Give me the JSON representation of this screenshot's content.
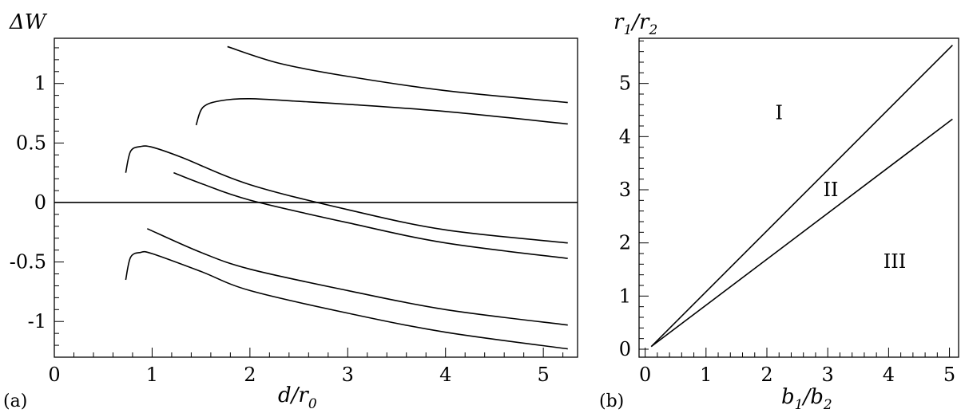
{
  "chart_data": [
    {
      "type": "line",
      "panel_label": "(a)",
      "xlabel": "d/r0",
      "xlabel_main": "d/r",
      "xlabel_sub": "0",
      "ylabel": "ΔW",
      "xlim": [
        0,
        5.35
      ],
      "ylim": [
        -1.3,
        1.38
      ],
      "x_ticks": [
        "0",
        "1",
        "2",
        "3",
        "4",
        "5"
      ],
      "y_ticks": [
        "1",
        "0.5",
        "0",
        "-0.5",
        "-1"
      ],
      "y_tick_values": [
        1,
        0.5,
        0,
        -0.5,
        -1
      ],
      "x_tick_values": [
        0,
        1,
        2,
        3,
        4,
        5
      ],
      "grid": false,
      "zero_line": true,
      "series": [
        {
          "points": [
            [
              1.77,
              1.31
            ],
            [
              2.3,
              1.17
            ],
            [
              3.0,
              1.06
            ],
            [
              4.0,
              0.94
            ],
            [
              5.25,
              0.84
            ]
          ]
        },
        {
          "points": [
            [
              1.45,
              0.65
            ],
            [
              1.52,
              0.8
            ],
            [
              1.7,
              0.855
            ],
            [
              2.0,
              0.872
            ],
            [
              2.5,
              0.85
            ],
            [
              3.0,
              0.825
            ],
            [
              4.0,
              0.765
            ],
            [
              5.25,
              0.66
            ]
          ]
        },
        {
          "points": [
            [
              0.73,
              0.25
            ],
            [
              0.78,
              0.43
            ],
            [
              0.88,
              0.47
            ],
            [
              1.0,
              0.465
            ],
            [
              1.3,
              0.38
            ],
            [
              2.0,
              0.15
            ],
            [
              3.0,
              -0.06
            ],
            [
              4.0,
              -0.23
            ],
            [
              5.25,
              -0.34
            ]
          ]
        },
        {
          "points": [
            [
              1.22,
              0.25
            ],
            [
              1.5,
              0.16
            ],
            [
              2.0,
              0.02
            ],
            [
              3.0,
              -0.17
            ],
            [
              4.0,
              -0.34
            ],
            [
              5.25,
              -0.47
            ]
          ]
        },
        {
          "points": [
            [
              0.95,
              -0.22
            ],
            [
              1.5,
              -0.42
            ],
            [
              2.0,
              -0.56
            ],
            [
              3.0,
              -0.74
            ],
            [
              4.0,
              -0.9
            ],
            [
              5.25,
              -1.03
            ]
          ]
        },
        {
          "points": [
            [
              0.73,
              -0.65
            ],
            [
              0.78,
              -0.46
            ],
            [
              0.88,
              -0.42
            ],
            [
              1.0,
              -0.43
            ],
            [
              1.5,
              -0.58
            ],
            [
              2.0,
              -0.74
            ],
            [
              3.0,
              -0.93
            ],
            [
              4.0,
              -1.09
            ],
            [
              5.25,
              -1.23
            ]
          ]
        }
      ]
    },
    {
      "type": "line",
      "panel_label": "(b)",
      "xlabel": "b1/b2",
      "ylabel": "r1/r2",
      "xlim": [
        -0.1,
        5.15
      ],
      "ylim": [
        -0.15,
        5.85
      ],
      "x_ticks": [
        "0",
        "1",
        "2",
        "3",
        "4",
        "5"
      ],
      "y_ticks": [
        "0",
        "1",
        "2",
        "3",
        "4",
        "5"
      ],
      "x_tick_values": [
        0,
        1,
        2,
        3,
        4,
        5
      ],
      "y_tick_values": [
        0,
        1,
        2,
        3,
        4,
        5
      ],
      "grid": false,
      "series": [
        {
          "points": [
            [
              0.1,
              0.05
            ],
            [
              5.05,
              5.72
            ]
          ]
        },
        {
          "points": [
            [
              0.1,
              0.05
            ],
            [
              5.05,
              4.33
            ]
          ]
        }
      ],
      "annotations": [
        {
          "text": "I",
          "x": 2.2,
          "y": 4.45
        },
        {
          "text": "II",
          "x": 3.05,
          "y": 3.0
        },
        {
          "text": "III",
          "x": 4.1,
          "y": 1.65
        }
      ]
    }
  ]
}
